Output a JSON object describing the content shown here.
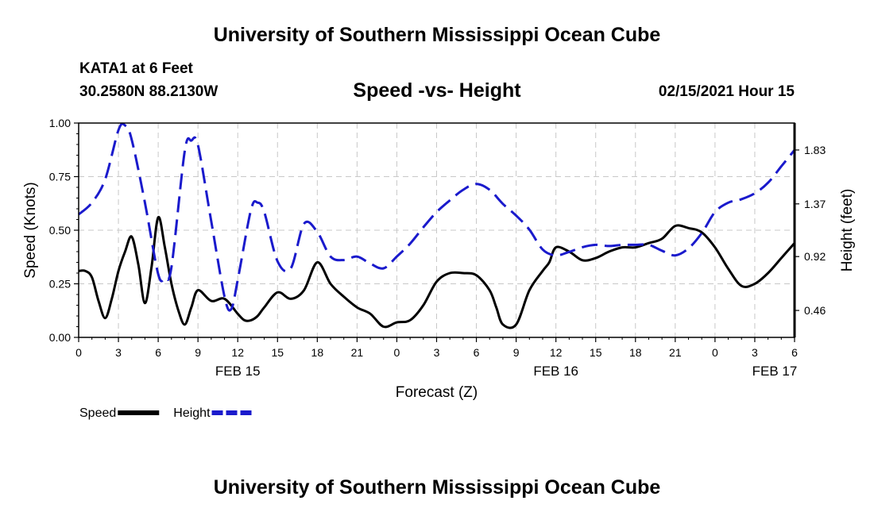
{
  "header": {
    "top_title": "University of Southern Mississippi Ocean Cube",
    "station": "KATA1 at 6 Feet",
    "coordinates": "30.2580N 88.2130W",
    "chart_title": "Speed -vs- Height",
    "datetime": "02/15/2021 Hour 15",
    "bottom_title": "University of Southern Mississippi Ocean Cube"
  },
  "colors": {
    "speed": "#000000",
    "height": "#1a1acc",
    "grid": "#c8c8c8"
  },
  "chart_data": {
    "type": "line",
    "title": "Speed -vs- Height",
    "xlabel": "Forecast (Z)",
    "ylabel": "Speed (Knots)",
    "y2label": "Height (feet)",
    "xlim": [
      0,
      54
    ],
    "ylim": [
      0,
      1
    ],
    "y2lim": [
      0.23,
      2.06
    ],
    "x_ticks": [
      0,
      3,
      6,
      9,
      12,
      15,
      18,
      21,
      24,
      27,
      30,
      33,
      36,
      39,
      42,
      45,
      48,
      51,
      54
    ],
    "x_tick_labels": [
      "0",
      "3",
      "6",
      "9",
      "12",
      "15",
      "18",
      "21",
      "0",
      "3",
      "6",
      "9",
      "12",
      "15",
      "18",
      "21",
      "0",
      "3",
      "6"
    ],
    "date_labels": [
      {
        "x": 12,
        "label": "FEB 15"
      },
      {
        "x": 36,
        "label": "FEB 16"
      },
      {
        "x": 52.5,
        "label": "FEB 17"
      }
    ],
    "y_ticks": [
      0,
      0.25,
      0.5,
      0.75,
      1.0
    ],
    "y_tick_labels": [
      "0.00",
      "0.25",
      "0.50",
      "0.75",
      "1.00"
    ],
    "y2_ticks": [
      0.46,
      0.92,
      1.37,
      1.83
    ],
    "y2_tick_labels": [
      "0.46",
      "0.92",
      "1.37",
      "1.83"
    ],
    "grid": true,
    "legend_position": "bottom-left",
    "series": [
      {
        "name": "Speed",
        "axis": "left",
        "style": "solid",
        "x": [
          0,
          0.5,
          1,
          1.5,
          2,
          2.5,
          3,
          3.5,
          4,
          4.5,
          5,
          5.5,
          6,
          6.5,
          7,
          7.5,
          8,
          8.5,
          9,
          10,
          11,
          12,
          12.5,
          13,
          13.5,
          14,
          15,
          16,
          17,
          18,
          19,
          20,
          21,
          22,
          23,
          24,
          25,
          26,
          27,
          28,
          29,
          30,
          31,
          31.5,
          32,
          33,
          34,
          35,
          35.5,
          36,
          37,
          38,
          39,
          40,
          41,
          42,
          43,
          44,
          45,
          46,
          47,
          48,
          49,
          50,
          51,
          52,
          53,
          54
        ],
        "values": [
          0.31,
          0.31,
          0.28,
          0.17,
          0.09,
          0.18,
          0.31,
          0.4,
          0.47,
          0.34,
          0.16,
          0.33,
          0.56,
          0.42,
          0.25,
          0.13,
          0.06,
          0.14,
          0.22,
          0.17,
          0.18,
          0.11,
          0.08,
          0.08,
          0.1,
          0.14,
          0.21,
          0.18,
          0.22,
          0.35,
          0.25,
          0.19,
          0.14,
          0.11,
          0.05,
          0.07,
          0.08,
          0.15,
          0.26,
          0.3,
          0.3,
          0.29,
          0.22,
          0.14,
          0.06,
          0.06,
          0.22,
          0.31,
          0.35,
          0.42,
          0.4,
          0.36,
          0.37,
          0.4,
          0.42,
          0.42,
          0.44,
          0.46,
          0.52,
          0.51,
          0.49,
          0.42,
          0.32,
          0.24,
          0.25,
          0.3,
          0.37,
          0.44
        ]
      },
      {
        "name": "Height",
        "axis": "right",
        "style": "dashed",
        "x": [
          0,
          1,
          2,
          3,
          3.5,
          4,
          5,
          6,
          6.5,
          7,
          8,
          8.5,
          9,
          10,
          11,
          11.5,
          12,
          13,
          13.5,
          14,
          15,
          16,
          17,
          18,
          19,
          20,
          21,
          22,
          23,
          24,
          25,
          26,
          27,
          28,
          29,
          30,
          31,
          32,
          33,
          34,
          35,
          36,
          37,
          38,
          39,
          40,
          41,
          42,
          43,
          44,
          45,
          46,
          47,
          48,
          49,
          50,
          51,
          52,
          53,
          54
        ],
        "values": [
          1.28,
          1.38,
          1.58,
          2.0,
          2.04,
          1.92,
          1.38,
          0.77,
          0.74,
          0.83,
          1.82,
          1.91,
          1.87,
          1.22,
          0.58,
          0.47,
          0.72,
          1.32,
          1.38,
          1.3,
          0.88,
          0.82,
          1.2,
          1.13,
          0.92,
          0.89,
          0.92,
          0.86,
          0.82,
          0.92,
          1.03,
          1.17,
          1.3,
          1.4,
          1.49,
          1.54,
          1.49,
          1.37,
          1.27,
          1.15,
          0.98,
          0.93,
          0.96,
          1.0,
          1.02,
          1.01,
          1.02,
          1.02,
          1.02,
          0.97,
          0.93,
          0.99,
          1.12,
          1.3,
          1.38,
          1.41,
          1.46,
          1.55,
          1.69,
          1.83
        ]
      }
    ]
  }
}
